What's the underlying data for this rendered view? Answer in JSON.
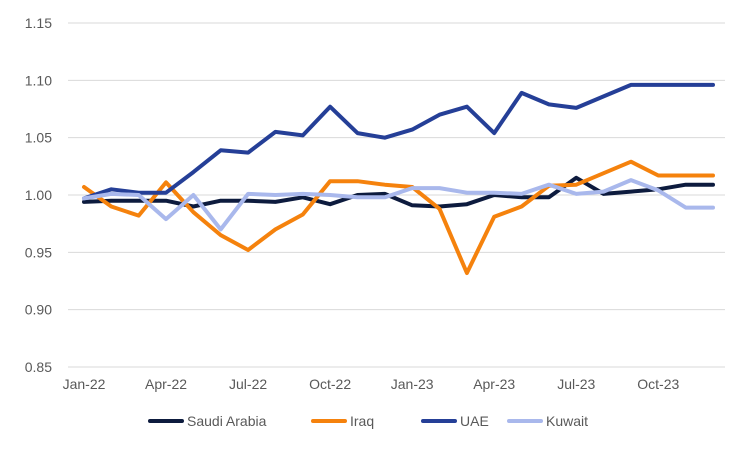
{
  "chart_data": {
    "type": "line",
    "title": "",
    "xlabel": "",
    "ylabel": "",
    "ylim": [
      0.85,
      1.15
    ],
    "yticks": [
      "0.85",
      "0.90",
      "0.95",
      "1.00",
      "1.05",
      "1.10",
      "1.15"
    ],
    "ytick_values": [
      0.85,
      0.9,
      0.95,
      1.0,
      1.05,
      1.1,
      1.15
    ],
    "grid": true,
    "legend_position": "bottom",
    "categories": [
      "Jan-22",
      "Feb-22",
      "Mar-22",
      "Apr-22",
      "May-22",
      "Jun-22",
      "Jul-22",
      "Aug-22",
      "Sep-22",
      "Oct-22",
      "Nov-22",
      "Dec-22",
      "Jan-23",
      "Feb-23",
      "Mar-23",
      "Apr-23",
      "May-23",
      "Jun-23",
      "Jul-23",
      "Aug-23",
      "Sep-23",
      "Oct-23",
      "Nov-23",
      "Dec-23"
    ],
    "x_tick_labels": [
      "Jan-22",
      "Apr-22",
      "Jul-22",
      "Oct-22",
      "Jan-23",
      "Apr-23",
      "Jul-23",
      "Oct-23"
    ],
    "x_tick_indices": [
      0,
      3,
      6,
      9,
      12,
      15,
      18,
      21
    ],
    "series": [
      {
        "name": "Saudi Arabia",
        "color": "#0d1b3e",
        "values": [
          0.994,
          0.995,
          0.995,
          0.995,
          0.99,
          0.995,
          0.995,
          0.994,
          0.998,
          0.992,
          1.0,
          1.001,
          0.991,
          0.99,
          0.992,
          1.0,
          0.998,
          0.998,
          1.015,
          1.001,
          1.003,
          1.005,
          1.009,
          1.009
        ]
      },
      {
        "name": "Iraq",
        "color": "#f5820d",
        "values": [
          1.007,
          0.99,
          0.982,
          1.011,
          0.985,
          0.965,
          0.952,
          0.97,
          0.983,
          1.012,
          1.012,
          1.009,
          1.007,
          0.988,
          0.932,
          0.981,
          0.99,
          1.008,
          1.009,
          1.019,
          1.029,
          1.017,
          1.017,
          1.017
        ]
      },
      {
        "name": "UAE",
        "color": "#253f97",
        "values": [
          0.997,
          1.005,
          1.002,
          1.002,
          1.02,
          1.039,
          1.037,
          1.055,
          1.052,
          1.077,
          1.054,
          1.05,
          1.057,
          1.07,
          1.077,
          1.054,
          1.089,
          1.079,
          1.076,
          1.086,
          1.096,
          1.096,
          1.096,
          1.096
        ]
      },
      {
        "name": "Kuwait",
        "color": "#a9b8ec",
        "values": [
          0.997,
          1.001,
          1.0,
          0.979,
          1.0,
          0.97,
          1.001,
          1.0,
          1.001,
          1.0,
          0.998,
          0.998,
          1.006,
          1.006,
          1.002,
          1.002,
          1.001,
          1.009,
          1.001,
          1.003,
          1.013,
          1.004,
          0.989,
          0.989
        ]
      }
    ]
  }
}
